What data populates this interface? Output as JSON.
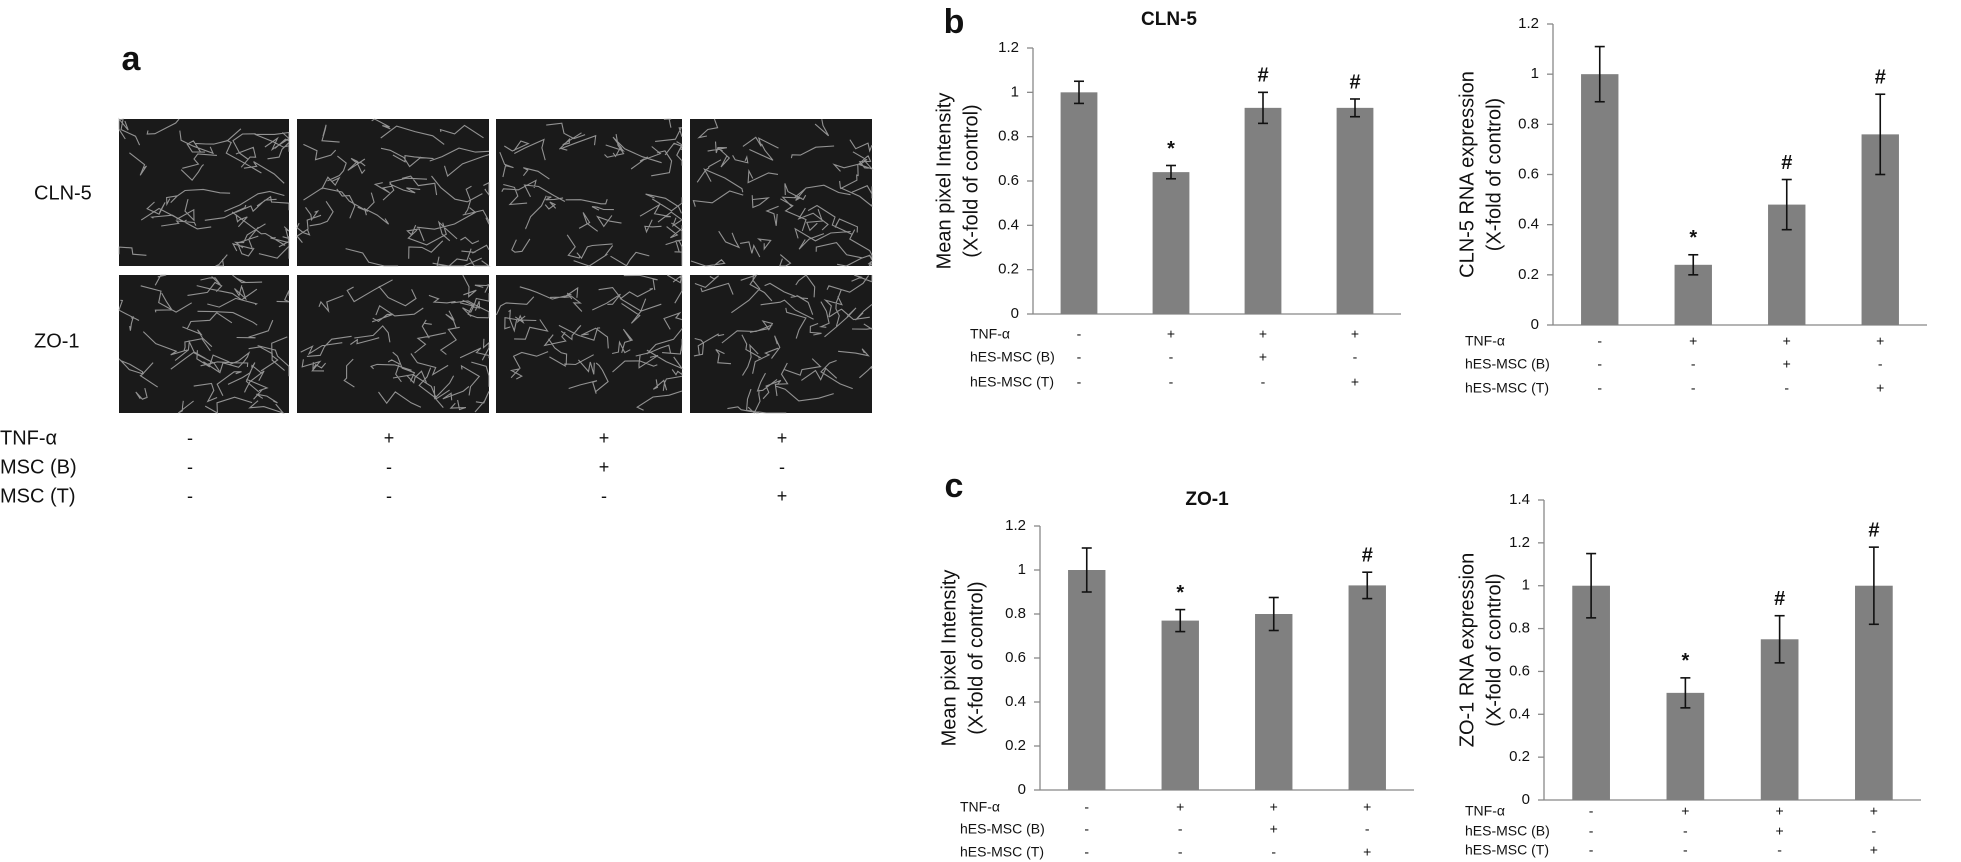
{
  "panels": [
    "a",
    "b",
    "c"
  ],
  "panel_a": {
    "rows": [
      "CLN-5",
      "ZO-1"
    ],
    "conditions": [
      {
        "label": "TNF-α",
        "values": [
          "-",
          "+",
          "+",
          "+"
        ]
      },
      {
        "label": "MSC (B)",
        "values": [
          "-",
          "-",
          "+",
          "-"
        ]
      },
      {
        "label": "MSC (T)",
        "values": [
          "-",
          "-",
          "-",
          "+"
        ]
      }
    ]
  },
  "chart_data": [
    {
      "type": "bar",
      "title": "CLN-5",
      "y_label": [
        "Mean pixel  Intensity",
        "(X-fold of control)"
      ],
      "values": [
        1.0,
        0.64,
        0.93,
        0.93
      ],
      "errors": [
        0.05,
        0.03,
        0.07,
        0.04
      ],
      "annotations": [
        null,
        "*",
        "#",
        "#"
      ],
      "color": "#808080",
      "ylim": [
        0,
        1.2
      ],
      "yticks": [
        0,
        0.2,
        0.4,
        0.6,
        0.8,
        1,
        1.2
      ],
      "conditions": [
        {
          "label": "TNF-α",
          "values": [
            "-",
            "+",
            "+",
            "+"
          ]
        },
        {
          "label": "hES-MSC (B)",
          "values": [
            "-",
            "-",
            "+",
            "-"
          ]
        },
        {
          "label": "hES-MSC (T)",
          "values": [
            "-",
            "-",
            "-",
            "+"
          ]
        }
      ]
    },
    {
      "type": "bar",
      "y_label": [
        "CLN-5 RNA expression",
        "(X-fold of control)"
      ],
      "values": [
        1.0,
        0.24,
        0.48,
        0.76
      ],
      "errors": [
        0.11,
        0.04,
        0.1,
        0.16
      ],
      "annotations": [
        null,
        "*",
        "#",
        "#"
      ],
      "color": "#808080",
      "ylim": [
        0,
        1.2
      ],
      "yticks": [
        0,
        0.2,
        0.4,
        0.6,
        0.8,
        1,
        1.2
      ],
      "conditions": [
        {
          "label": "TNF-α",
          "values": [
            "-",
            "+",
            "+",
            "+"
          ]
        },
        {
          "label": "hES-MSC (B)",
          "values": [
            "-",
            "-",
            "+",
            "-"
          ]
        },
        {
          "label": "hES-MSC (T)",
          "values": [
            "-",
            "-",
            "-",
            "+"
          ]
        }
      ]
    },
    {
      "type": "bar",
      "title": "ZO-1",
      "y_label": [
        "Mean pixel  Intensity",
        "(X-fold of control)"
      ],
      "values": [
        1.0,
        0.77,
        0.8,
        0.93
      ],
      "errors": [
        0.1,
        0.05,
        0.075,
        0.06
      ],
      "annotations": [
        null,
        "*",
        null,
        "#"
      ],
      "color": "#808080",
      "ylim": [
        0,
        1.2
      ],
      "yticks": [
        0,
        0.2,
        0.4,
        0.6,
        0.8,
        1,
        1.2
      ],
      "conditions": [
        {
          "label": "TNF-α",
          "values": [
            "-",
            "+",
            "+",
            "+"
          ]
        },
        {
          "label": "hES-MSC (B)",
          "values": [
            "-",
            "-",
            "+",
            "-"
          ]
        },
        {
          "label": "hES-MSC (T)",
          "values": [
            "-",
            "-",
            "-",
            "+"
          ]
        }
      ]
    },
    {
      "type": "bar",
      "y_label": [
        "ZO-1 RNA expression",
        "(X-fold of control)"
      ],
      "values": [
        1.0,
        0.5,
        0.75,
        1.0
      ],
      "errors": [
        0.15,
        0.07,
        0.11,
        0.18
      ],
      "annotations": [
        null,
        "*",
        "#",
        "#"
      ],
      "color": "#808080",
      "ylim": [
        0,
        1.4
      ],
      "yticks": [
        0,
        0.2,
        0.4,
        0.6,
        0.8,
        1,
        1.2,
        1.4
      ],
      "conditions": [
        {
          "label": "TNF-α",
          "values": [
            "-",
            "+",
            "+",
            "+"
          ]
        },
        {
          "label": "hES-MSC (B)",
          "values": [
            "-",
            "-",
            "+",
            "-"
          ]
        },
        {
          "label": "hES-MSC (T)",
          "values": [
            "-",
            "-",
            "-",
            "+"
          ]
        }
      ]
    }
  ]
}
